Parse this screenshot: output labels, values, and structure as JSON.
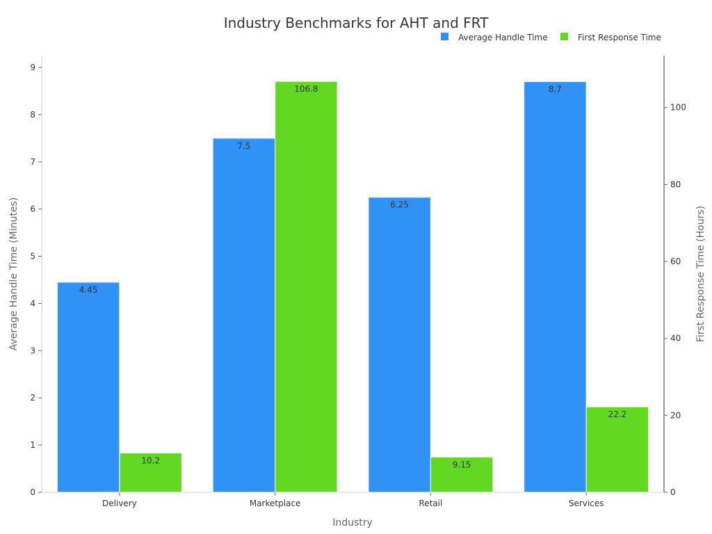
{
  "chart_data": {
    "type": "bar",
    "title": "Industry Benchmarks for AHT and FRT",
    "xlabel": "Industry",
    "ylabel_left": "Average Handle Time (Minutes)",
    "ylabel_right": "First Response Time (Hours)",
    "categories": [
      "Delivery",
      "Marketplace",
      "Retail",
      "Services"
    ],
    "series": [
      {
        "name": "Average Handle Time",
        "axis": "left",
        "color": "#3092f5",
        "values": [
          4.45,
          7.5,
          6.25,
          8.7
        ],
        "labels": [
          "4.45",
          "7.5",
          "6.25",
          "8.7"
        ]
      },
      {
        "name": "First Response Time",
        "axis": "right",
        "color": "#62d823",
        "values": [
          10.2,
          106.8,
          9.15,
          22.2
        ],
        "labels": [
          "10.2",
          "106.8",
          "9.15",
          "22.2"
        ]
      }
    ],
    "ylim_left": [
      0,
      9.25
    ],
    "ylim_right": [
      0,
      113.5
    ],
    "yticks_left": [
      "0",
      "1",
      "2",
      "3",
      "4",
      "5",
      "6",
      "7",
      "8",
      "9"
    ],
    "yticks_right": [
      "0",
      "20",
      "40",
      "60",
      "80",
      "100"
    ],
    "grid": false,
    "legend_position": "top-right"
  }
}
